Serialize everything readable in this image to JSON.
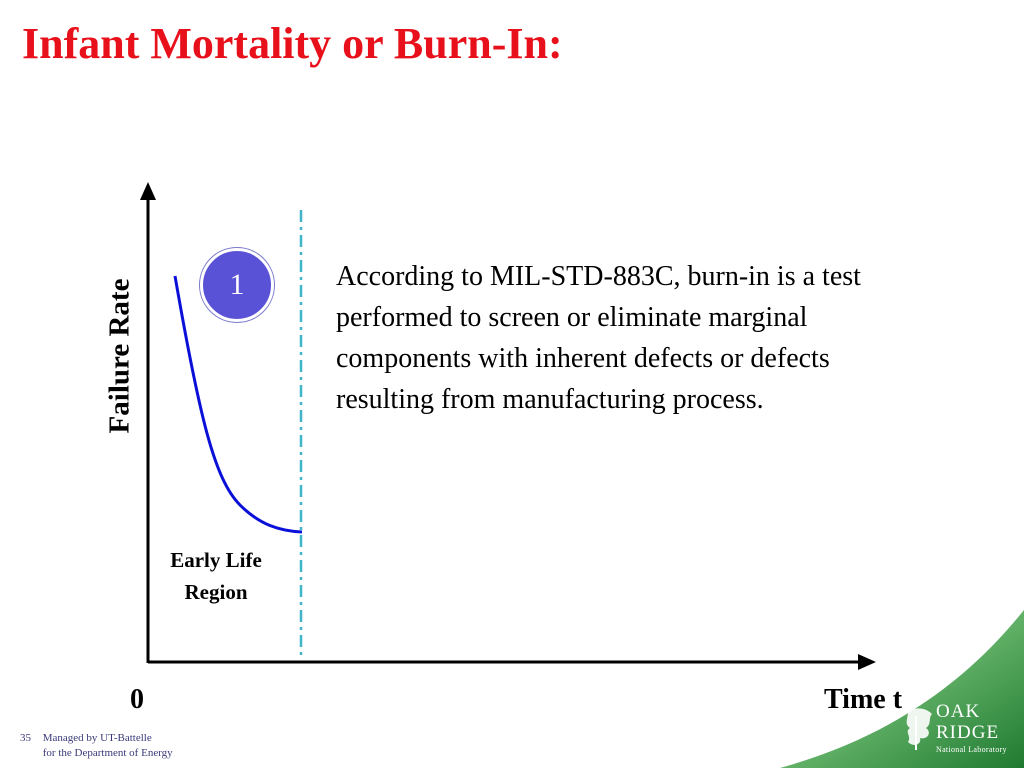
{
  "slide": {
    "title": "Infant Mortality or Burn-In:"
  },
  "diagram": {
    "y_axis_label": "Failure Rate",
    "x_axis_label": "Time t",
    "origin_label": "0",
    "region_label_line1": "Early Life",
    "region_label_line2": "Region",
    "badge_number": "1",
    "curve_color": "#0b10d8",
    "divider_color": "#3fb6c8",
    "badge_color": "#5a52d6"
  },
  "description": {
    "text": "According to MIL-STD-883C, burn-in is a test performed to screen or eliminate marginal components with inherent defects or defects resulting from manufacturing process."
  },
  "footer": {
    "page_number": "35",
    "line1": "Managed by UT-Battelle",
    "line2": "for the Department of Energy"
  },
  "logo": {
    "line1": "OAK",
    "line2": "RIDGE",
    "line3": "National Laboratory",
    "background_color": "#2e8b3e"
  }
}
